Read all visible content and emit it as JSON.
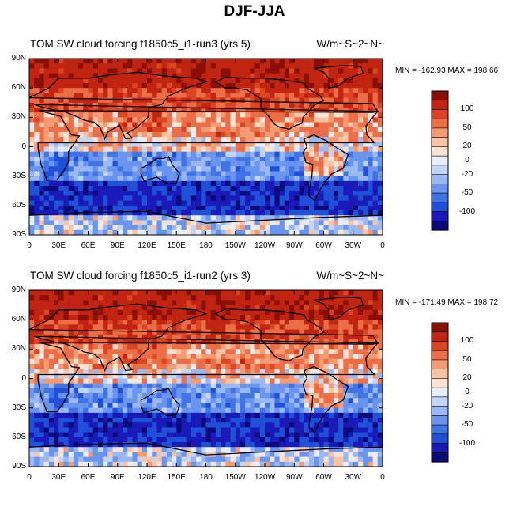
{
  "figure": {
    "title": "DJF-JJA"
  },
  "chart_data": [
    {
      "type": "heatmap",
      "title_left": "TOM SW cloud forcing   f1850c5_i1-run3 (yrs 5)",
      "title_right": "W/m~S~2~N~",
      "stats": "MIN = -162.93 MAX = 198.66",
      "lat_labels": [
        "90N",
        "60N",
        "30N",
        "0",
        "30S",
        "60S",
        "90S"
      ],
      "lon_labels": [
        "0",
        "30E",
        "60E",
        "90E",
        "120E",
        "150E",
        "180",
        "150W",
        "120W",
        "90W",
        "60W",
        "30W",
        "0"
      ],
      "colorbar_labels": [
        "100",
        "50",
        "20",
        "0",
        "-20",
        "-50",
        "-100"
      ]
    },
    {
      "type": "heatmap",
      "title_left": "TOM SW cloud forcing   f1850c5_i1-run2 (yrs 3)",
      "title_right": "W/m~S~2~N~",
      "stats": "MIN = -171.49 MAX = 198.72",
      "lat_labels": [
        "90N",
        "60N",
        "30N",
        "0",
        "30S",
        "60S",
        "90S"
      ],
      "lon_labels": [
        "0",
        "30E",
        "60E",
        "90E",
        "120E",
        "150E",
        "180",
        "150W",
        "120W",
        "90W",
        "60W",
        "30W",
        "0"
      ],
      "colorbar_labels": [
        "100",
        "50",
        "20",
        "0",
        "-20",
        "-50",
        "-100"
      ]
    }
  ],
  "colors": {
    "scale": [
      "#0a0a7a",
      "#1a1ab8",
      "#2050d8",
      "#3f73e6",
      "#6a95ee",
      "#99b8f4",
      "#c4d6f8",
      "#e6eefb",
      "#fbe3d3",
      "#f9c3a4",
      "#f49b74",
      "#ec6e46",
      "#dc4522",
      "#c12410",
      "#8a0f04"
    ]
  }
}
